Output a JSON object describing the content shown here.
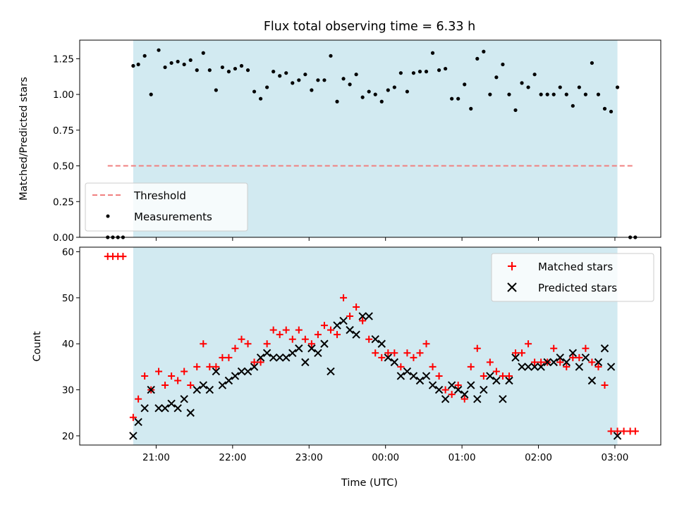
{
  "chart_data": [
    {
      "type": "scatter",
      "title": "Flux total observing time = 6.33 h",
      "ylabel": "Matched/Predicted stars",
      "xlabel": "",
      "ylim": [
        0,
        1.38
      ],
      "yticks": [
        "0.00",
        "0.25",
        "0.50",
        "0.75",
        "1.00",
        "1.25"
      ],
      "ytick_values": [
        0,
        0.25,
        0.5,
        0.75,
        1.0,
        1.25
      ],
      "shaded_span": {
        "start": "20:42",
        "end": "03:02",
        "color": "#add8e6"
      },
      "threshold": {
        "name": "Threshold",
        "value": 0.5,
        "x_start": "20:22",
        "x_end": "03:14",
        "color": "#f08080"
      },
      "legend": {
        "position": "lower left",
        "entries": [
          "Threshold",
          "Measurements"
        ]
      },
      "series": [
        {
          "name": "Measurements",
          "marker": "dot",
          "color": "#000000",
          "x": [
            "20:22",
            "20:26",
            "20:30",
            "20:34",
            "20:42",
            "20:46",
            "20:51",
            "20:56",
            "21:02",
            "21:07",
            "21:12",
            "21:17",
            "21:22",
            "21:27",
            "21:32",
            "21:37",
            "21:42",
            "21:47",
            "21:52",
            "21:57",
            "22:02",
            "22:07",
            "22:12",
            "22:17",
            "22:22",
            "22:27",
            "22:32",
            "22:37",
            "22:42",
            "22:47",
            "22:52",
            "22:57",
            "23:02",
            "23:07",
            "23:12",
            "23:17",
            "23:22",
            "23:27",
            "23:32",
            "23:37",
            "23:42",
            "23:47",
            "23:52",
            "23:57",
            "00:02",
            "00:07",
            "00:12",
            "00:17",
            "00:22",
            "00:27",
            "00:32",
            "00:37",
            "00:42",
            "00:47",
            "00:52",
            "00:57",
            "01:02",
            "01:07",
            "01:12",
            "01:17",
            "01:22",
            "01:27",
            "01:32",
            "01:37",
            "01:42",
            "01:47",
            "01:52",
            "01:57",
            "02:02",
            "02:07",
            "02:12",
            "02:17",
            "02:22",
            "02:27",
            "02:32",
            "02:37",
            "02:42",
            "02:47",
            "02:52",
            "02:57",
            "03:02",
            "03:12",
            "03:16"
          ],
          "y": [
            0,
            0,
            0,
            0,
            1.2,
            1.21,
            1.27,
            1.0,
            1.31,
            1.19,
            1.22,
            1.23,
            1.21,
            1.24,
            1.17,
            1.29,
            1.17,
            1.03,
            1.19,
            1.16,
            1.18,
            1.2,
            1.17,
            1.02,
            0.97,
            1.05,
            1.16,
            1.13,
            1.15,
            1.08,
            1.1,
            1.14,
            1.03,
            1.1,
            1.1,
            1.27,
            0.95,
            1.11,
            1.07,
            1.14,
            0.98,
            1.02,
            1.0,
            0.95,
            1.03,
            1.05,
            1.15,
            1.02,
            1.15,
            1.16,
            1.16,
            1.29,
            1.17,
            1.18,
            0.97,
            0.97,
            1.07,
            0.9,
            1.25,
            1.3,
            1.0,
            1.12,
            1.21,
            1.0,
            0.89,
            1.08,
            1.05,
            1.14,
            1.0,
            1.0,
            1.0,
            1.05,
            1.0,
            0.92,
            1.05,
            1.0,
            1.22,
            1.0,
            0.9,
            0.88,
            1.05,
            0,
            0
          ]
        }
      ]
    },
    {
      "type": "scatter",
      "title": "",
      "xlabel": "Time (UTC)",
      "ylabel": "Count",
      "ylim": [
        18,
        61
      ],
      "yticks": [
        "20",
        "30",
        "40",
        "50",
        "60"
      ],
      "ytick_values": [
        20,
        30,
        40,
        50,
        60
      ],
      "x_range": [
        "20:00",
        "03:36"
      ],
      "xticks": [
        "21:00",
        "22:00",
        "23:00",
        "00:00",
        "01:00",
        "02:00",
        "03:00"
      ],
      "shaded_span": {
        "start": "20:42",
        "end": "03:02",
        "color": "#add8e6"
      },
      "legend": {
        "position": "upper right",
        "entries": [
          "Matched stars",
          "Predicted stars"
        ]
      },
      "series": [
        {
          "name": "Matched stars",
          "marker": "plus",
          "color": "#ff0000",
          "x": [
            "20:22",
            "20:26",
            "20:30",
            "20:34",
            "20:42",
            "20:46",
            "20:51",
            "20:56",
            "21:02",
            "21:07",
            "21:12",
            "21:17",
            "21:22",
            "21:27",
            "21:32",
            "21:37",
            "21:42",
            "21:47",
            "21:52",
            "21:57",
            "22:02",
            "22:07",
            "22:12",
            "22:17",
            "22:22",
            "22:27",
            "22:32",
            "22:37",
            "22:42",
            "22:47",
            "22:52",
            "22:57",
            "23:02",
            "23:07",
            "23:12",
            "23:17",
            "23:22",
            "23:27",
            "23:32",
            "23:37",
            "23:42",
            "23:47",
            "23:52",
            "23:57",
            "00:02",
            "00:07",
            "00:12",
            "00:17",
            "00:22",
            "00:27",
            "00:32",
            "00:37",
            "00:42",
            "00:47",
            "00:52",
            "00:57",
            "01:02",
            "01:07",
            "01:12",
            "01:17",
            "01:22",
            "01:27",
            "01:32",
            "01:37",
            "01:42",
            "01:47",
            "01:52",
            "01:57",
            "02:02",
            "02:07",
            "02:12",
            "02:17",
            "02:22",
            "02:27",
            "02:32",
            "02:37",
            "02:42",
            "02:47",
            "02:52",
            "02:57",
            "03:02",
            "03:07",
            "03:12",
            "03:16"
          ],
          "y": [
            59,
            59,
            59,
            59,
            24,
            28,
            33,
            30,
            34,
            31,
            33,
            32,
            34,
            31,
            35,
            40,
            35,
            35,
            37,
            37,
            39,
            41,
            40,
            36,
            36,
            40,
            43,
            42,
            43,
            41,
            43,
            41,
            40,
            42,
            44,
            43,
            42,
            50,
            46,
            48,
            45,
            41,
            38,
            37,
            38,
            38,
            35,
            38,
            37,
            38,
            40,
            35,
            33,
            30,
            29,
            31,
            28,
            35,
            39,
            33,
            36,
            34,
            33,
            33,
            38,
            38,
            40,
            36,
            36,
            36,
            39,
            36,
            35,
            37,
            37,
            39,
            36,
            35,
            31,
            21,
            21,
            21,
            21,
            21
          ]
        },
        {
          "name": "Predicted stars",
          "marker": "x",
          "color": "#000000",
          "x": [
            "20:42",
            "20:46",
            "20:51",
            "20:56",
            "21:02",
            "21:07",
            "21:12",
            "21:17",
            "21:22",
            "21:27",
            "21:32",
            "21:37",
            "21:42",
            "21:47",
            "21:52",
            "21:57",
            "22:02",
            "22:07",
            "22:12",
            "22:17",
            "22:22",
            "22:27",
            "22:32",
            "22:37",
            "22:42",
            "22:47",
            "22:52",
            "22:57",
            "23:02",
            "23:07",
            "23:12",
            "23:17",
            "23:22",
            "23:27",
            "23:32",
            "23:37",
            "23:42",
            "23:47",
            "23:52",
            "23:57",
            "00:02",
            "00:07",
            "00:12",
            "00:17",
            "00:22",
            "00:27",
            "00:32",
            "00:37",
            "00:42",
            "00:47",
            "00:52",
            "00:57",
            "01:02",
            "01:07",
            "01:12",
            "01:17",
            "01:22",
            "01:27",
            "01:32",
            "01:37",
            "01:42",
            "01:47",
            "01:52",
            "01:57",
            "02:02",
            "02:07",
            "02:12",
            "02:17",
            "02:22",
            "02:27",
            "02:32",
            "02:37",
            "02:42",
            "02:47",
            "02:52",
            "02:57",
            "03:02"
          ],
          "y": [
            20,
            23,
            26,
            30,
            26,
            26,
            27,
            26,
            28,
            25,
            30,
            31,
            30,
            34,
            31,
            32,
            33,
            34,
            34,
            35,
            37,
            38,
            37,
            37,
            37,
            38,
            39,
            36,
            39,
            38,
            40,
            34,
            44,
            45,
            43,
            42,
            46,
            46,
            41,
            40,
            37,
            36,
            33,
            34,
            33,
            32,
            33,
            31,
            30,
            28,
            31,
            30,
            29,
            31,
            28,
            30,
            33,
            32,
            28,
            32,
            37,
            35,
            35,
            35,
            35,
            36,
            36,
            37,
            36,
            38,
            35,
            37,
            32,
            36,
            39,
            35,
            20
          ]
        }
      ]
    }
  ]
}
